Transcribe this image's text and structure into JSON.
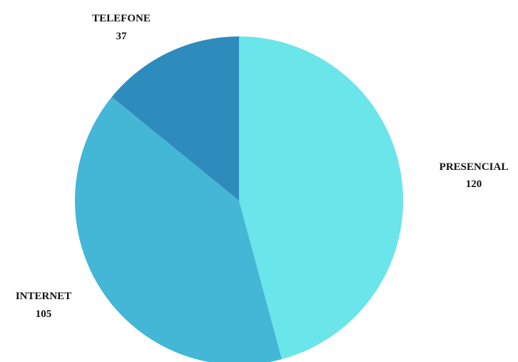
{
  "chart_data": {
    "type": "pie",
    "title": "",
    "slices": [
      {
        "label": "PRESENCIAL",
        "value": 120,
        "value_label": "120",
        "color": "#6ae5ea"
      },
      {
        "label": "INTERNET",
        "value": 105,
        "value_label": "105",
        "color": "#44b6d6"
      },
      {
        "label": "TELEFONE",
        "value": 37,
        "value_label": "37",
        "color": "#2e8cbc"
      }
    ],
    "start_angle": "12 o'clock",
    "direction": "clockwise",
    "legend": "none"
  }
}
